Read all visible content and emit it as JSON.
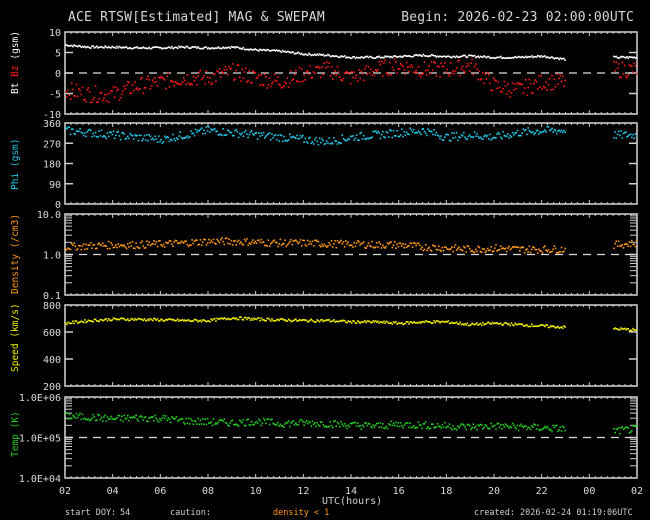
{
  "header": {
    "title": "ACE RTSW[Estimated] MAG & SWEPAM",
    "begin": "Begin: 2026-02-23 02:00:00UTC"
  },
  "footer": {
    "start_doy_label": "start DOY:",
    "start_doy_value": "54",
    "caution_label": "caution:",
    "caution_value": "density < 1",
    "created": "created: 2026-02-24 01:19:06UTC"
  },
  "colors": {
    "background": "#000000",
    "bt": "#ffffff",
    "bz": "#ff1a1a",
    "phi": "#22c8e8",
    "density": "#ff9a1a",
    "speed": "#f0f000",
    "temp": "#22cc22",
    "axis": "#d8d8d8"
  },
  "xaxis": {
    "label": "UTC(hours)",
    "ticks": [
      "02",
      "04",
      "06",
      "08",
      "10",
      "12",
      "14",
      "16",
      "18",
      "20",
      "22",
      "00",
      "02"
    ]
  },
  "chart_data": [
    {
      "type": "scatter",
      "panel": "mag",
      "title": "ACE RTSW[Estimated] MAG & SWEPAM",
      "ylabel": "Bt Bz (gsm)",
      "ylabel_parts": [
        {
          "text": "Bt",
          "color": "#ffffff"
        },
        {
          "text": "Bz",
          "color": "#ff1a1a"
        },
        {
          "text": "(gsm)",
          "color": "#ffffff"
        }
      ],
      "yticks": [
        "10",
        "5",
        "0",
        "-5",
        "-10"
      ],
      "ylim": [
        -10,
        10
      ],
      "reference_line": 0,
      "x_hours_from_start": [
        0,
        1,
        2,
        3,
        4,
        5,
        6,
        7,
        8,
        9,
        10,
        11,
        12,
        13,
        14,
        15,
        16,
        17,
        18,
        19,
        20,
        21,
        22,
        23,
        24
      ],
      "series": [
        {
          "name": "Bt",
          "values": [
            7,
            6.5,
            6.5,
            6.3,
            6.3,
            6.5,
            6.3,
            6.5,
            5.8,
            5.5,
            4.8,
            4.5,
            4,
            4,
            4.2,
            4.5,
            4.2,
            4.3,
            4.0,
            4.0,
            4.3,
            3.5,
            null,
            4,
            4
          ]
        },
        {
          "name": "Bz",
          "values": [
            -4,
            -5,
            -5,
            -3,
            -2,
            -1,
            -1,
            0.5,
            -1,
            -2,
            0,
            1,
            -1,
            1,
            2,
            1,
            1,
            2,
            -3,
            -4,
            -2,
            -2,
            null,
            1,
            1
          ]
        }
      ],
      "data_gap_hours": [
        21.8,
        23.6
      ]
    },
    {
      "type": "scatter",
      "panel": "phi",
      "ylabel": "Phi (gsm)",
      "yticks": [
        "360",
        "270",
        "180",
        "90",
        "0"
      ],
      "ylim": [
        0,
        360
      ],
      "series": [
        {
          "name": "Phi",
          "values": [
            330,
            320,
            310,
            300,
            290,
            310,
            330,
            320,
            310,
            300,
            290,
            280,
            300,
            310,
            320,
            330,
            300,
            310,
            300,
            320,
            330,
            330,
            null,
            310,
            310
          ]
        }
      ]
    },
    {
      "type": "scatter",
      "panel": "density",
      "ylabel": "Density (/cm3)",
      "yticks": [
        "10.0",
        "1.0",
        "0.1"
      ],
      "yscale": "log",
      "ylim": [
        0.1,
        10
      ],
      "reference_line": 1.0,
      "series": [
        {
          "name": "Density",
          "values": [
            1.6,
            1.7,
            1.8,
            1.8,
            1.9,
            2.0,
            2.2,
            2.2,
            2.1,
            2.0,
            2.0,
            1.9,
            1.9,
            1.8,
            1.8,
            1.6,
            1.5,
            1.4,
            1.5,
            1.4,
            1.4,
            1.4,
            null,
            1.8,
            2.0
          ]
        }
      ]
    },
    {
      "type": "scatter",
      "panel": "speed",
      "ylabel": "Speed (km/s)",
      "yticks": [
        "800",
        "600",
        "400",
        "200"
      ],
      "ylim": [
        200,
        800
      ],
      "series": [
        {
          "name": "Speed",
          "values": [
            670,
            690,
            700,
            700,
            695,
            690,
            690,
            710,
            700,
            695,
            690,
            690,
            680,
            680,
            670,
            680,
            680,
            660,
            670,
            660,
            650,
            640,
            null,
            630,
            620
          ]
        }
      ]
    },
    {
      "type": "scatter",
      "panel": "temp",
      "ylabel": "Temp (K)",
      "yticks": [
        "1.0E+06",
        "1.0E+05",
        "1.0E+04"
      ],
      "yscale": "log",
      "ylim": [
        10000,
        1000000
      ],
      "reference_line": 100000,
      "series": [
        {
          "name": "Temp",
          "values": [
            350000,
            330000,
            300000,
            320000,
            310000,
            270000,
            250000,
            240000,
            260000,
            230000,
            240000,
            230000,
            210000,
            200000,
            220000,
            210000,
            200000,
            190000,
            200000,
            190000,
            180000,
            170000,
            null,
            150000,
            170000
          ]
        }
      ]
    }
  ]
}
